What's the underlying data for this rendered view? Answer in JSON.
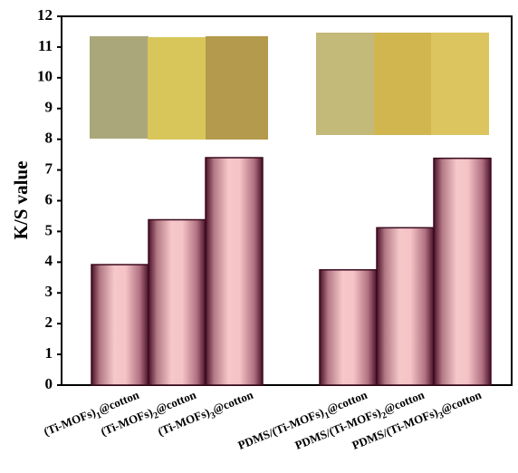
{
  "chart_data": {
    "type": "bar",
    "y_label": "K/S value",
    "categories": [
      "(Ti-MOFs)1@cotton",
      "(Ti-MOFs)2@cotton",
      "(Ti-MOFs)3@cotton",
      null,
      "PDMS/(Ti-MOFs)1@cotton",
      "PDMS/(Ti-MOFs)2@cotton",
      "PDMS/(Ti-MOFs)3@cotton"
    ],
    "values": [
      3.92,
      5.38,
      7.4,
      null,
      3.75,
      5.12,
      7.38
    ],
    "ylim": [
      0,
      12
    ],
    "yticks": [
      0,
      1,
      2,
      3,
      4,
      5,
      6,
      7,
      8,
      9,
      10,
      11,
      12
    ]
  }
}
